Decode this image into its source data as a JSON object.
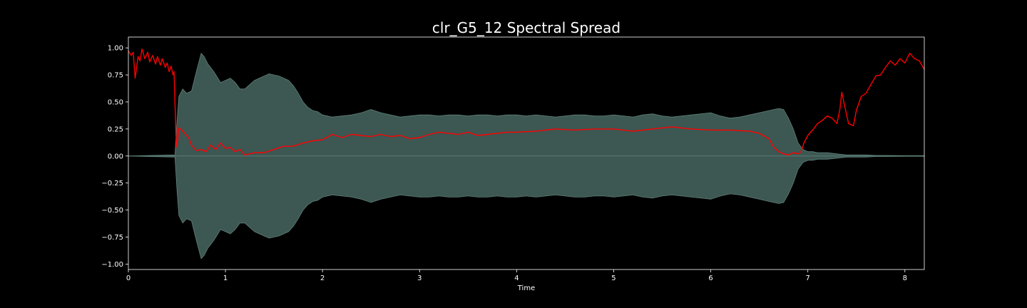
{
  "chart_data": {
    "type": "line",
    "title": "clr_G5_12 Spectral Spread",
    "xlabel": "Time",
    "ylabel": "",
    "xlim": [
      0,
      8.2
    ],
    "ylim": [
      -1.05,
      1.1
    ],
    "x_ticks": [
      0,
      1,
      2,
      3,
      4,
      5,
      6,
      7,
      8
    ],
    "x_tick_labels": [
      "0",
      "1",
      "2",
      "3",
      "4",
      "5",
      "6",
      "7",
      "8"
    ],
    "y_ticks": [
      1.0,
      0.75,
      0.5,
      0.25,
      0.0,
      -0.25,
      -0.5,
      -0.75,
      -1.0
    ],
    "y_tick_labels": [
      "1.00",
      "0.75",
      "0.50",
      "0.25",
      "0.00",
      "−0.25",
      "−0.50",
      "−0.75",
      "−1.00"
    ],
    "grid": false,
    "colors": {
      "background": "#000000",
      "waveform": "#3d5752",
      "waveform_edge": "#5f8078",
      "spread": "#ff0000",
      "axes": "#ffffff"
    },
    "series": [
      {
        "name": "waveform_envelope",
        "style": "filled-symmetric",
        "x": [
          0,
          0.48,
          0.5,
          0.52,
          0.56,
          0.6,
          0.65,
          0.7,
          0.75,
          0.78,
          0.82,
          0.88,
          0.95,
          1.0,
          1.05,
          1.1,
          1.15,
          1.2,
          1.25,
          1.3,
          1.35,
          1.4,
          1.45,
          1.5,
          1.55,
          1.6,
          1.65,
          1.7,
          1.75,
          1.8,
          1.85,
          1.9,
          1.95,
          2.0,
          2.1,
          2.2,
          2.3,
          2.4,
          2.5,
          2.6,
          2.7,
          2.8,
          2.9,
          3.0,
          3.1,
          3.2,
          3.3,
          3.4,
          3.5,
          3.6,
          3.7,
          3.8,
          3.9,
          4.0,
          4.1,
          4.2,
          4.3,
          4.4,
          4.5,
          4.6,
          4.7,
          4.8,
          4.9,
          5.0,
          5.1,
          5.2,
          5.3,
          5.4,
          5.5,
          5.6,
          5.7,
          5.8,
          5.9,
          6.0,
          6.1,
          6.2,
          6.3,
          6.4,
          6.5,
          6.6,
          6.7,
          6.75,
          6.8,
          6.85,
          6.9,
          6.95,
          7.0,
          7.05,
          7.1,
          7.2,
          7.3,
          7.4,
          7.5,
          7.6,
          7.7,
          7.8,
          8.0,
          8.2
        ],
        "values": [
          0.0,
          0.01,
          0.3,
          0.55,
          0.62,
          0.58,
          0.6,
          0.78,
          0.95,
          0.92,
          0.85,
          0.78,
          0.68,
          0.7,
          0.72,
          0.68,
          0.62,
          0.62,
          0.66,
          0.7,
          0.72,
          0.74,
          0.76,
          0.75,
          0.74,
          0.72,
          0.7,
          0.65,
          0.58,
          0.5,
          0.45,
          0.42,
          0.41,
          0.38,
          0.36,
          0.37,
          0.38,
          0.4,
          0.43,
          0.4,
          0.38,
          0.36,
          0.37,
          0.38,
          0.38,
          0.37,
          0.38,
          0.38,
          0.37,
          0.38,
          0.38,
          0.37,
          0.38,
          0.38,
          0.37,
          0.38,
          0.37,
          0.36,
          0.37,
          0.38,
          0.38,
          0.37,
          0.37,
          0.38,
          0.37,
          0.36,
          0.38,
          0.39,
          0.37,
          0.36,
          0.37,
          0.38,
          0.39,
          0.4,
          0.37,
          0.35,
          0.36,
          0.38,
          0.4,
          0.42,
          0.44,
          0.43,
          0.35,
          0.25,
          0.12,
          0.06,
          0.04,
          0.04,
          0.03,
          0.03,
          0.02,
          0.01,
          0.01,
          0.01,
          0.005,
          0.005,
          0.003,
          0.003
        ]
      },
      {
        "name": "spectral_spread",
        "style": "line",
        "x": [
          0,
          0.03,
          0.05,
          0.07,
          0.1,
          0.12,
          0.14,
          0.17,
          0.2,
          0.22,
          0.25,
          0.28,
          0.3,
          0.33,
          0.35,
          0.38,
          0.4,
          0.42,
          0.44,
          0.46,
          0.47,
          0.48,
          0.49,
          0.5,
          0.52,
          0.55,
          0.58,
          0.62,
          0.65,
          0.7,
          0.75,
          0.8,
          0.85,
          0.9,
          0.95,
          1.0,
          1.05,
          1.1,
          1.15,
          1.2,
          1.3,
          1.4,
          1.5,
          1.6,
          1.7,
          1.8,
          1.9,
          2.0,
          2.1,
          2.2,
          2.3,
          2.4,
          2.5,
          2.6,
          2.7,
          2.8,
          2.9,
          3.0,
          3.1,
          3.2,
          3.3,
          3.4,
          3.5,
          3.6,
          3.7,
          3.8,
          3.9,
          4.0,
          4.2,
          4.4,
          4.6,
          4.8,
          5.0,
          5.2,
          5.4,
          5.6,
          5.8,
          6.0,
          6.2,
          6.4,
          6.5,
          6.6,
          6.65,
          6.7,
          6.75,
          6.8,
          6.85,
          6.9,
          6.93,
          6.96,
          7.0,
          7.05,
          7.1,
          7.15,
          7.2,
          7.25,
          7.3,
          7.33,
          7.35,
          7.38,
          7.42,
          7.47,
          7.5,
          7.55,
          7.6,
          7.65,
          7.7,
          7.75,
          7.8,
          7.85,
          7.9,
          7.95,
          8.0,
          8.05,
          8.1,
          8.15,
          8.2
        ],
        "values": [
          0.97,
          0.93,
          0.96,
          0.72,
          0.92,
          0.88,
          0.99,
          0.9,
          0.96,
          0.87,
          0.93,
          0.85,
          0.92,
          0.84,
          0.9,
          0.82,
          0.86,
          0.78,
          0.83,
          0.75,
          0.78,
          0.5,
          0.2,
          0.08,
          0.26,
          0.24,
          0.21,
          0.17,
          0.1,
          0.05,
          0.06,
          0.04,
          0.1,
          0.06,
          0.12,
          0.07,
          0.08,
          0.04,
          0.06,
          0.01,
          0.03,
          0.03,
          0.06,
          0.09,
          0.09,
          0.12,
          0.14,
          0.15,
          0.2,
          0.17,
          0.2,
          0.19,
          0.18,
          0.2,
          0.18,
          0.19,
          0.16,
          0.17,
          0.2,
          0.22,
          0.21,
          0.2,
          0.22,
          0.19,
          0.2,
          0.21,
          0.22,
          0.22,
          0.23,
          0.25,
          0.24,
          0.25,
          0.25,
          0.23,
          0.25,
          0.27,
          0.25,
          0.24,
          0.24,
          0.23,
          0.21,
          0.16,
          0.08,
          0.04,
          0.02,
          0.01,
          0.03,
          0.02,
          0.04,
          0.12,
          0.19,
          0.24,
          0.3,
          0.33,
          0.37,
          0.35,
          0.3,
          0.43,
          0.59,
          0.46,
          0.3,
          0.28,
          0.42,
          0.55,
          0.58,
          0.66,
          0.74,
          0.75,
          0.82,
          0.88,
          0.84,
          0.9,
          0.86,
          0.95,
          0.9,
          0.88,
          0.8
        ]
      }
    ]
  }
}
